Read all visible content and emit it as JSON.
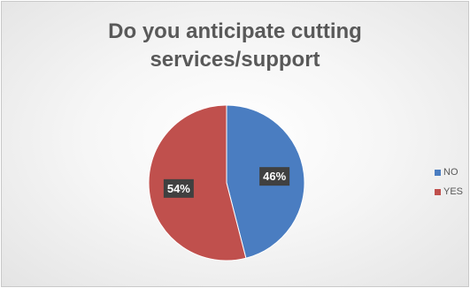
{
  "chart_data": {
    "type": "pie",
    "title": "Do you anticipate cutting services/support",
    "title_lines": [
      "Do you anticipate cutting",
      "services/support"
    ],
    "categories": [
      "NO",
      "YES"
    ],
    "values": [
      46,
      54
    ],
    "data_labels": [
      "46%",
      "54%"
    ],
    "colors": [
      "#4a7dc1",
      "#c0504d"
    ],
    "legend_position": "right"
  }
}
